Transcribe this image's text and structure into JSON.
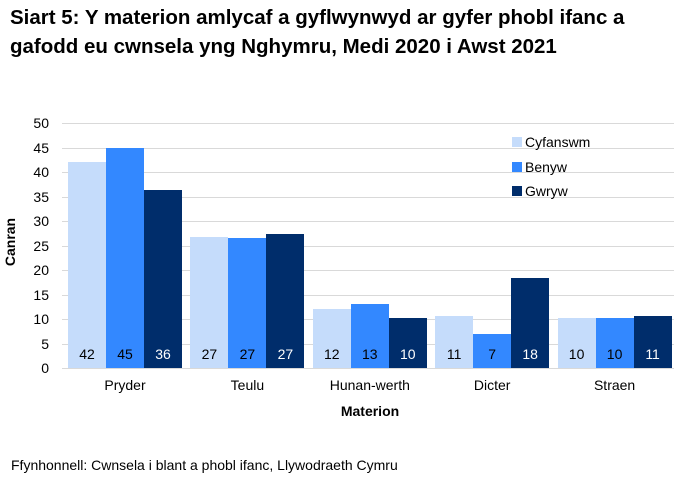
{
  "title": "Siart 5: Y materion amlycaf a gyflwynwyd ar gyfer phobl ifanc a gafodd eu cwnsela yng Nghymru, Medi 2020 i Awst 2021",
  "source": "Ffynhonnell: Cwnsela i blant a phobl ifanc, Llywodraeth Cymru",
  "colors": {
    "Cyfanswm": "#c5dcfb",
    "Benyw": "#3388ff",
    "Gwryw": "#002d6b"
  },
  "chart_data": {
    "type": "bar",
    "title": "Siart 5: Y materion amlycaf a gyflwynwyd ar gyfer phobl ifanc a gafodd eu cwnsela yng Nghymru, Medi 2020 i Awst 2021",
    "xlabel": "Materion",
    "ylabel": "Canran",
    "ylim": [
      0,
      50
    ],
    "yticks": [
      0,
      5,
      10,
      15,
      20,
      25,
      30,
      35,
      40,
      45,
      50
    ],
    "grid": true,
    "legend_position": "top-right",
    "categories": [
      "Pryder",
      "Teulu",
      "Hunan-werth",
      "Dicter",
      "Straen"
    ],
    "series": [
      {
        "name": "Cyfanswm",
        "values": [
          42,
          27,
          12,
          11,
          10
        ],
        "heights": [
          42.0,
          26.7,
          12.0,
          10.6,
          10.3
        ],
        "color": "#c5dcfb"
      },
      {
        "name": "Benyw",
        "values": [
          45,
          27,
          13,
          7,
          10
        ],
        "heights": [
          44.8,
          26.5,
          13.0,
          7.0,
          10.3
        ],
        "color": "#3388ff"
      },
      {
        "name": "Gwryw",
        "values": [
          36,
          27,
          10,
          18,
          11
        ],
        "heights": [
          36.3,
          27.3,
          10.2,
          18.3,
          10.6
        ],
        "color": "#002d6b"
      }
    ]
  }
}
